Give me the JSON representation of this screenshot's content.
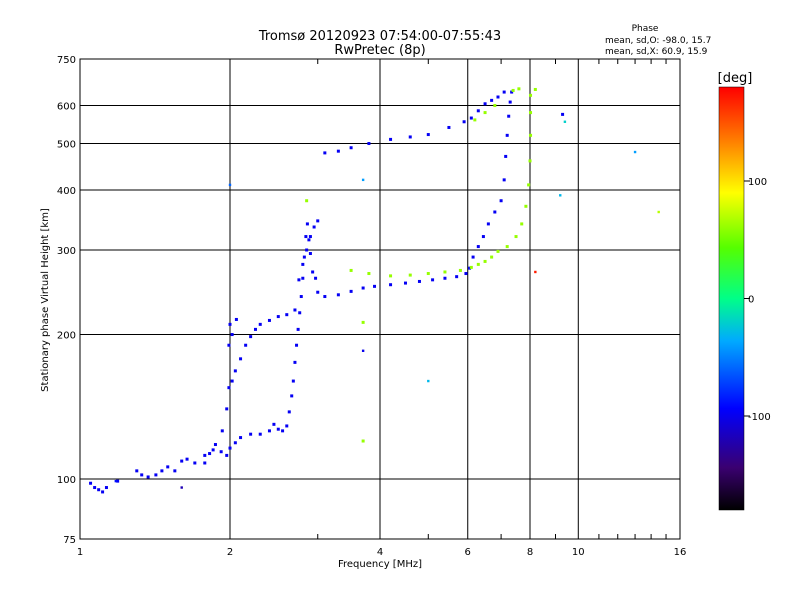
{
  "chart_data": {
    "type": "scatter",
    "title": "Tromsø 20120923 07:54:00-07:55:43",
    "subtitle": "RwPretec (8p)",
    "xlabel": "Frequency [MHz]",
    "ylabel": "Stationary phase Virtual Height [km]",
    "x_scale": "log",
    "y_scale": "log",
    "xlim": [
      1,
      16
    ],
    "ylim": [
      75,
      750
    ],
    "xticks": [
      "1",
      "2",
      "4",
      "6",
      "8",
      "10",
      "16"
    ],
    "xtick_values": [
      1,
      2,
      4,
      6,
      8,
      10,
      16
    ],
    "yticks": [
      "75",
      "100",
      "200",
      "300",
      "400",
      "500",
      "600",
      "750"
    ],
    "ytick_values": [
      75,
      100,
      200,
      300,
      400,
      500,
      600,
      750
    ],
    "grid": true,
    "phase_info": {
      "title": "Phase",
      "line1": "mean, sd,O: -98.0, 15.7",
      "line2": "mean, sd,X:  60.9, 15.9"
    },
    "colorbar": {
      "label": "[deg]",
      "range": [
        -180,
        180
      ],
      "ticks": [
        "100",
        "0",
        "-100"
      ],
      "tick_values": [
        100,
        0,
        -100
      ]
    },
    "series": [
      {
        "name": "O",
        "color_phase": -98,
        "points": [
          [
            1.05,
            98
          ],
          [
            1.07,
            96
          ],
          [
            1.09,
            95
          ],
          [
            1.11,
            94
          ],
          [
            1.13,
            96
          ],
          [
            1.19,
            99
          ],
          [
            1.3,
            104
          ],
          [
            1.33,
            102
          ],
          [
            1.37,
            101
          ],
          [
            1.42,
            102
          ],
          [
            1.46,
            104
          ],
          [
            1.5,
            106
          ],
          [
            1.55,
            104
          ],
          [
            1.6,
            109
          ],
          [
            1.64,
            110
          ],
          [
            1.7,
            108
          ],
          [
            1.78,
            112
          ],
          [
            1.85,
            115
          ],
          [
            1.92,
            114
          ],
          [
            1.97,
            112
          ],
          [
            2.0,
            116
          ],
          [
            2.05,
            119
          ],
          [
            2.1,
            122
          ],
          [
            2.2,
            124
          ],
          [
            2.3,
            124
          ],
          [
            2.4,
            126
          ],
          [
            2.45,
            130
          ],
          [
            2.5,
            127
          ],
          [
            2.55,
            126
          ],
          [
            2.6,
            129
          ],
          [
            2.63,
            138
          ],
          [
            2.66,
            149
          ],
          [
            2.68,
            160
          ],
          [
            2.7,
            175
          ],
          [
            2.72,
            190
          ],
          [
            2.74,
            205
          ],
          [
            2.76,
            222
          ],
          [
            2.78,
            240
          ],
          [
            2.8,
            262
          ],
          [
            2.82,
            290
          ],
          [
            2.84,
            320
          ],
          [
            2.86,
            340
          ],
          [
            2.88,
            315
          ],
          [
            2.9,
            295
          ],
          [
            2.93,
            270
          ],
          [
            2.97,
            262
          ],
          [
            3.0,
            245
          ],
          [
            3.1,
            240
          ],
          [
            3.3,
            242
          ],
          [
            3.5,
            246
          ],
          [
            3.7,
            250
          ],
          [
            3.9,
            252
          ],
          [
            4.2,
            254
          ],
          [
            4.5,
            256
          ],
          [
            4.8,
            258
          ],
          [
            5.1,
            260
          ],
          [
            5.4,
            262
          ],
          [
            5.7,
            264
          ],
          [
            5.95,
            268
          ],
          [
            6.05,
            275
          ],
          [
            6.15,
            290
          ],
          [
            6.3,
            305
          ],
          [
            6.45,
            320
          ],
          [
            6.6,
            340
          ],
          [
            6.8,
            360
          ],
          [
            7.0,
            380
          ],
          [
            7.1,
            420
          ],
          [
            7.15,
            470
          ],
          [
            7.2,
            520
          ],
          [
            7.25,
            570
          ],
          [
            7.3,
            610
          ],
          [
            7.35,
            640
          ],
          [
            3.1,
            478
          ],
          [
            3.3,
            482
          ],
          [
            3.5,
            490
          ],
          [
            3.8,
            500
          ],
          [
            4.2,
            510
          ],
          [
            4.6,
            516
          ],
          [
            5.0,
            522
          ],
          [
            5.5,
            540
          ],
          [
            5.9,
            555
          ],
          [
            6.1,
            565
          ],
          [
            6.3,
            585
          ],
          [
            6.5,
            605
          ],
          [
            6.7,
            615
          ],
          [
            6.9,
            625
          ],
          [
            7.1,
            640
          ],
          [
            1.78,
            108
          ],
          [
            1.82,
            113
          ],
          [
            1.87,
            118
          ],
          [
            1.93,
            126
          ],
          [
            1.97,
            140
          ],
          [
            1.99,
            155
          ],
          [
            2.02,
            160
          ],
          [
            2.05,
            168
          ],
          [
            2.1,
            178
          ],
          [
            2.15,
            190
          ],
          [
            2.2,
            198
          ],
          [
            2.25,
            205
          ],
          [
            2.3,
            210
          ],
          [
            2.4,
            214
          ],
          [
            2.5,
            218
          ],
          [
            2.6,
            220
          ],
          [
            2.7,
            225
          ],
          [
            2.75,
            260
          ],
          [
            2.8,
            280
          ],
          [
            2.85,
            300
          ],
          [
            2.9,
            320
          ],
          [
            2.95,
            335
          ],
          [
            3.0,
            345
          ],
          [
            2.0,
            210
          ],
          [
            2.02,
            200
          ],
          [
            1.99,
            190
          ],
          [
            2.06,
            215
          ],
          [
            9.3,
            575
          ]
        ]
      },
      {
        "name": "X",
        "color_phase": 61,
        "points": [
          [
            3.5,
            272
          ],
          [
            3.8,
            268
          ],
          [
            4.2,
            265
          ],
          [
            4.6,
            266
          ],
          [
            5.0,
            268
          ],
          [
            5.4,
            270
          ],
          [
            5.8,
            272
          ],
          [
            6.1,
            276
          ],
          [
            6.3,
            280
          ],
          [
            6.5,
            284
          ],
          [
            6.7,
            290
          ],
          [
            6.9,
            298
          ],
          [
            7.2,
            305
          ],
          [
            7.5,
            320
          ],
          [
            7.7,
            340
          ],
          [
            7.85,
            370
          ],
          [
            7.95,
            410
          ],
          [
            8.0,
            460
          ],
          [
            8.02,
            520
          ],
          [
            8.02,
            580
          ],
          [
            8.02,
            630
          ],
          [
            6.2,
            560
          ],
          [
            6.5,
            580
          ],
          [
            6.8,
            600
          ],
          [
            7.4,
            645
          ],
          [
            7.6,
            650
          ],
          [
            8.2,
            648
          ],
          [
            3.7,
            212
          ],
          [
            3.7,
            120
          ],
          [
            2.85,
            380
          ]
        ]
      }
    ],
    "scatter_outliers": [
      {
        "x": 2.0,
        "y": 410,
        "phase": -60
      },
      {
        "x": 3.7,
        "y": 420,
        "phase": -40
      },
      {
        "x": 5.0,
        "y": 160,
        "phase": -30
      },
      {
        "x": 9.4,
        "y": 555,
        "phase": -20
      },
      {
        "x": 9.2,
        "y": 390,
        "phase": -30
      },
      {
        "x": 13.0,
        "y": 480,
        "phase": -40
      },
      {
        "x": 14.5,
        "y": 360,
        "phase": 70
      },
      {
        "x": 8.2,
        "y": 270,
        "phase": 170
      },
      {
        "x": 3.7,
        "y": 185,
        "phase": -100
      },
      {
        "x": 1.18,
        "y": 99,
        "phase": -90
      },
      {
        "x": 1.6,
        "y": 96,
        "phase": -120
      }
    ]
  }
}
